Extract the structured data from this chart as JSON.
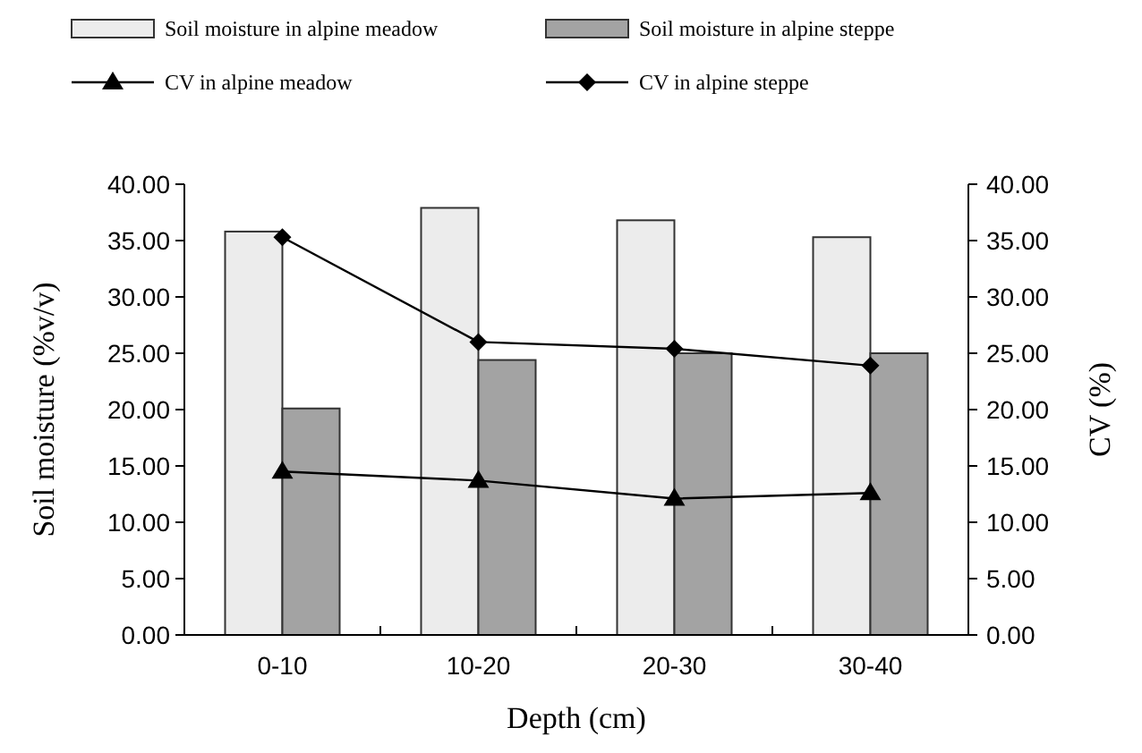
{
  "chart_data": {
    "type": "bar",
    "categories": [
      "0-10",
      "10-20",
      "20-30",
      "30-40"
    ],
    "xlabel": "Depth (cm)",
    "ylabel": "Soil moisture (%v/v)",
    "y2label": "CV (%)",
    "ylim": [
      0,
      40
    ],
    "yticks": [
      {
        "value": 0,
        "label": "0.00"
      },
      {
        "value": 5,
        "label": "5.00"
      },
      {
        "value": 10,
        "label": "10.00"
      },
      {
        "value": 15,
        "label": "15.00"
      },
      {
        "value": 20,
        "label": "20.00"
      },
      {
        "value": 25,
        "label": "25.00"
      },
      {
        "value": 30,
        "label": "30.00"
      },
      {
        "value": 35,
        "label": "35.00"
      },
      {
        "value": 40,
        "label": "40.00"
      }
    ],
    "y2lim": [
      0,
      40
    ],
    "y2ticks": [
      {
        "value": 0,
        "label": "0.00"
      },
      {
        "value": 5,
        "label": "5.00"
      },
      {
        "value": 10,
        "label": "10.00"
      },
      {
        "value": 15,
        "label": "15.00"
      },
      {
        "value": 20,
        "label": "20.00"
      },
      {
        "value": 25,
        "label": "25.00"
      },
      {
        "value": 30,
        "label": "30.00"
      },
      {
        "value": 35,
        "label": "35.00"
      },
      {
        "value": 40,
        "label": "40.00"
      }
    ],
    "legend": "top",
    "grid": false,
    "series": [
      {
        "name": "Soil moisture in alpine meadow",
        "color": "#ececec",
        "values": [
          35.8,
          37.9,
          36.8,
          35.3
        ]
      },
      {
        "name": "Soil moisture in alpine steppe",
        "color": "#a3a3a3",
        "values": [
          20.1,
          24.4,
          25.0,
          25.0
        ]
      },
      {
        "name": "CV in alpine meadow",
        "type": "line",
        "axis": "y2",
        "color": "#000000",
        "marker": "triangle",
        "values": [
          14.5,
          13.7,
          12.1,
          12.6
        ]
      },
      {
        "name": "CV in alpine steppe",
        "type": "line",
        "axis": "y2",
        "color": "#000000",
        "marker": "diamond",
        "values": [
          35.3,
          26.0,
          25.4,
          23.9
        ]
      }
    ]
  }
}
